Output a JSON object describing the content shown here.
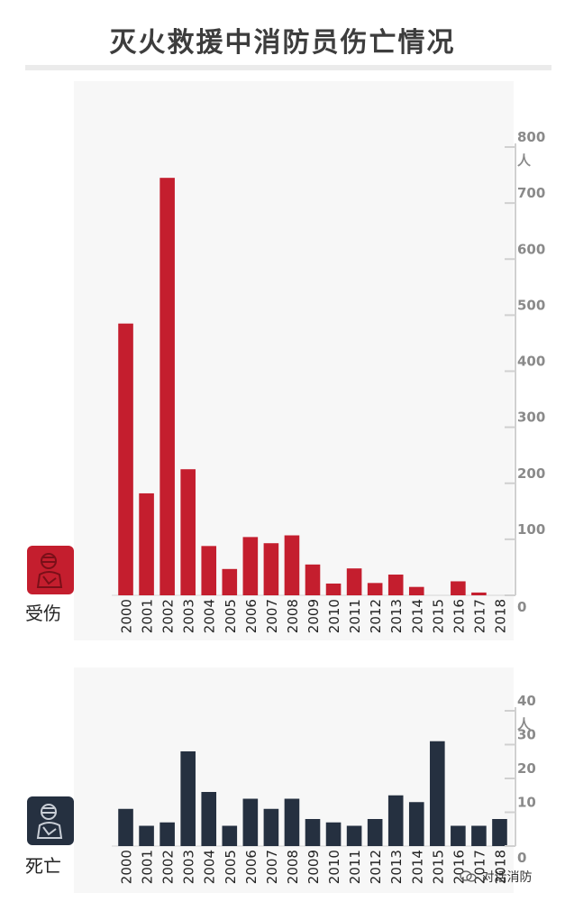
{
  "title": "灭火救援中消防员伤亡情况",
  "watermark": "对话消防",
  "colors": {
    "injured": "#c41e2e",
    "deaths": "#253040",
    "axis_text": "#888888",
    "panel_bg": "#f7f7f7"
  },
  "injured": {
    "badge_label": "受伤",
    "icon": "injured-firefighter-icon",
    "unit": "人"
  },
  "deaths": {
    "badge_label": "死亡",
    "icon": "deceased-firefighter-icon",
    "unit": "人"
  },
  "chart_data": [
    {
      "type": "bar",
      "categories": [
        "2000",
        "2001",
        "2002",
        "2003",
        "2004",
        "2005",
        "2006",
        "2007",
        "2008",
        "2009",
        "2010",
        "2011",
        "2012",
        "2013",
        "2014",
        "2015",
        "2016",
        "2017",
        "2018"
      ],
      "values": [
        485,
        182,
        745,
        225,
        88,
        47,
        104,
        93,
        107,
        55,
        21,
        48,
        22,
        37,
        15,
        0,
        25,
        5,
        0
      ],
      "ylim": [
        0,
        800
      ],
      "yticks": [
        0,
        100,
        200,
        300,
        400,
        500,
        600,
        700,
        800
      ],
      "unit": "人",
      "label": "受伤",
      "y_axis_position": "right",
      "grid": false
    },
    {
      "type": "bar",
      "categories": [
        "2000",
        "2001",
        "2002",
        "2003",
        "2004",
        "2005",
        "2006",
        "2007",
        "2008",
        "2009",
        "2010",
        "2011",
        "2012",
        "2013",
        "2014",
        "2015",
        "2016",
        "2017",
        "2018"
      ],
      "values": [
        11,
        6,
        7,
        28,
        16,
        6,
        14,
        11,
        14,
        8,
        7,
        6,
        8,
        15,
        13,
        31,
        6,
        6,
        8
      ],
      "ylim": [
        0,
        40
      ],
      "yticks": [
        0,
        10,
        20,
        30,
        40
      ],
      "unit": "人",
      "label": "死亡",
      "y_axis_position": "right",
      "grid": false
    }
  ]
}
